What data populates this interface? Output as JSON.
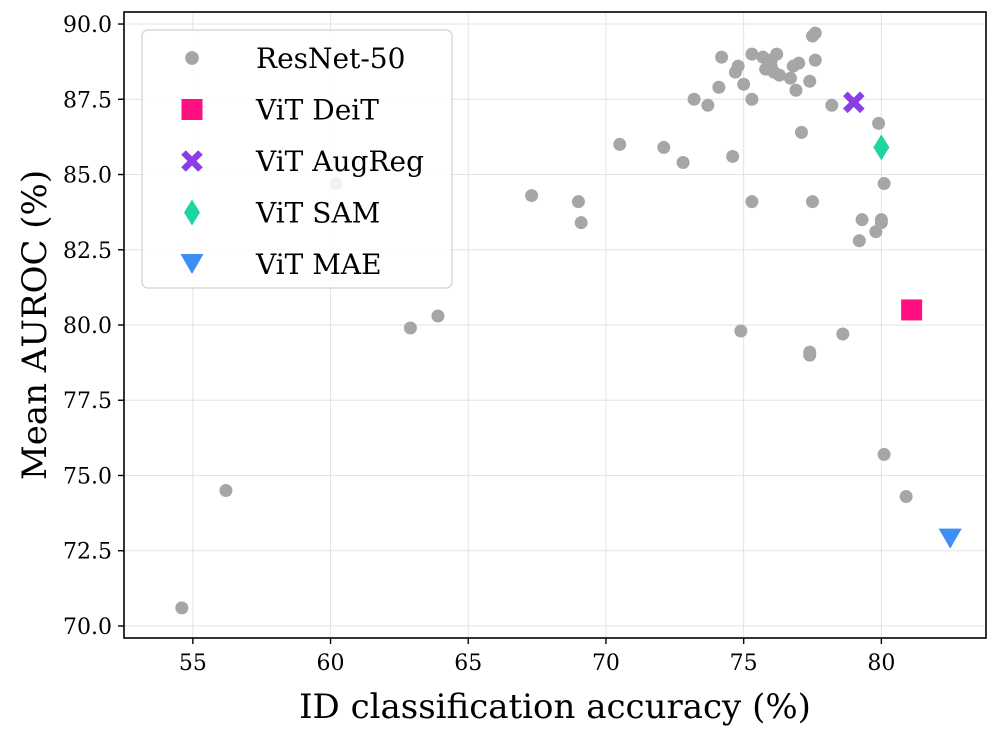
{
  "chart_data": {
    "type": "scatter",
    "xlabel": "ID classification accuracy (%)",
    "ylabel": "Mean AUROC (%)",
    "xlim": [
      52.5,
      83.8
    ],
    "ylim": [
      69.6,
      90.4
    ],
    "xticks": [
      55,
      60,
      65,
      70,
      75,
      80
    ],
    "yticks": [
      70.0,
      72.5,
      75.0,
      77.5,
      80.0,
      82.5,
      85.0,
      87.5,
      90.0
    ],
    "grid": true,
    "legend_position": "top-left",
    "series": [
      {
        "name": "ResNet-50",
        "marker": "circle",
        "color": "#a6a6a6",
        "points": [
          [
            54.6,
            70.6
          ],
          [
            56.2,
            74.5
          ],
          [
            60.2,
            84.7
          ],
          [
            62.9,
            79.9
          ],
          [
            63.9,
            80.3
          ],
          [
            67.3,
            84.3
          ],
          [
            69.0,
            84.1
          ],
          [
            69.1,
            83.4
          ],
          [
            70.5,
            86.0
          ],
          [
            72.1,
            85.9
          ],
          [
            72.8,
            85.4
          ],
          [
            73.2,
            87.5
          ],
          [
            73.7,
            87.3
          ],
          [
            74.1,
            87.9
          ],
          [
            74.2,
            88.9
          ],
          [
            74.6,
            85.6
          ],
          [
            74.7,
            88.4
          ],
          [
            74.8,
            88.6
          ],
          [
            74.9,
            79.8
          ],
          [
            75.0,
            88.0
          ],
          [
            75.3,
            89.0
          ],
          [
            75.3,
            87.5
          ],
          [
            75.3,
            84.1
          ],
          [
            75.7,
            88.9
          ],
          [
            75.8,
            88.5
          ],
          [
            76.0,
            88.6
          ],
          [
            76.0,
            88.8
          ],
          [
            76.1,
            88.4
          ],
          [
            76.2,
            89.0
          ],
          [
            76.3,
            88.3
          ],
          [
            76.7,
            88.2
          ],
          [
            76.8,
            88.6
          ],
          [
            76.9,
            87.8
          ],
          [
            77.0,
            88.7
          ],
          [
            77.1,
            86.4
          ],
          [
            77.4,
            79.0
          ],
          [
            77.4,
            79.1
          ],
          [
            77.4,
            88.1
          ],
          [
            77.5,
            89.6
          ],
          [
            77.5,
            84.1
          ],
          [
            77.6,
            89.7
          ],
          [
            77.6,
            88.8
          ],
          [
            78.2,
            87.3
          ],
          [
            78.6,
            79.7
          ],
          [
            79.2,
            82.8
          ],
          [
            79.3,
            83.5
          ],
          [
            79.8,
            83.1
          ],
          [
            79.9,
            86.7
          ],
          [
            80.0,
            83.4
          ],
          [
            80.0,
            83.5
          ],
          [
            80.1,
            84.7
          ],
          [
            80.1,
            75.7
          ],
          [
            80.9,
            74.3
          ]
        ]
      },
      {
        "name": "ViT DeiT",
        "marker": "square",
        "color": "#ff0f80",
        "points": [
          [
            81.1,
            80.5
          ]
        ]
      },
      {
        "name": "ViT AugReg",
        "marker": "x",
        "color": "#8b3de6",
        "points": [
          [
            79.0,
            87.4
          ]
        ]
      },
      {
        "name": "ViT SAM",
        "marker": "diamond",
        "color": "#1ed4a0",
        "points": [
          [
            80.0,
            85.9
          ]
        ]
      },
      {
        "name": "ViT MAE",
        "marker": "triangle-down",
        "color": "#3d8ef5",
        "points": [
          [
            82.5,
            72.9
          ]
        ]
      }
    ]
  }
}
